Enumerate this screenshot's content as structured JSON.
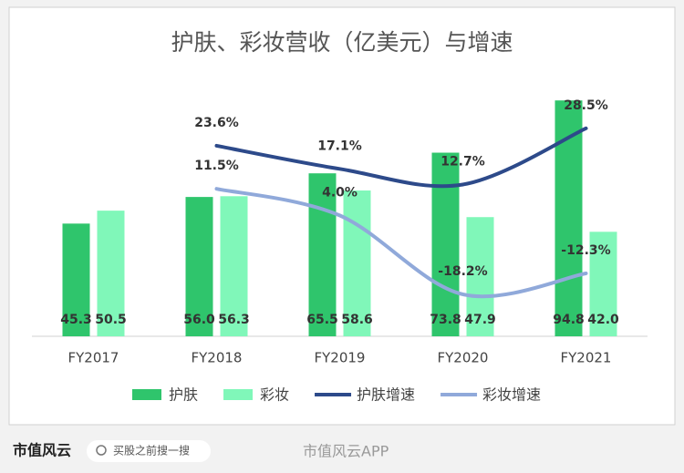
{
  "chart_data": {
    "type": "bar",
    "title": "护肤、彩妆营收（亿美元）与增速",
    "categories": [
      "FY2017",
      "FY2018",
      "FY2019",
      "FY2020",
      "FY2021"
    ],
    "ylim": [
      0,
      100
    ],
    "y2lim": [
      -30,
      40
    ],
    "series": [
      {
        "name": "护肤",
        "type": "bar",
        "color": "#2fc56c",
        "values": [
          45.3,
          56.0,
          65.5,
          73.8,
          94.8
        ],
        "value_labels": [
          "45.3",
          "56.0",
          "65.5",
          "73.8",
          "94.8"
        ]
      },
      {
        "name": "彩妆",
        "type": "bar",
        "color": "#80f7b9",
        "values": [
          50.5,
          56.3,
          58.6,
          47.9,
          42.0
        ],
        "value_labels": [
          "50.5",
          "56.3",
          "58.6",
          "47.9",
          "42.0"
        ]
      },
      {
        "name": "护肤增速",
        "type": "line",
        "axis": "y2",
        "color": "#2d4a8a",
        "values": [
          null,
          23.6,
          17.1,
          12.7,
          28.5
        ],
        "value_labels": [
          null,
          "23.6%",
          "17.1%",
          "12.7%",
          "28.5%"
        ]
      },
      {
        "name": "彩妆增速",
        "type": "line",
        "axis": "y2",
        "color": "#90a9da",
        "values": [
          null,
          11.5,
          4.0,
          -18.2,
          -12.3
        ],
        "value_labels": [
          null,
          "11.5%",
          "4.0%",
          "-18.2%",
          "-12.3%"
        ]
      }
    ]
  },
  "footer": {
    "logo": "市值风云",
    "search": "买股之前搜一搜",
    "watermark": "市值风云APP"
  }
}
